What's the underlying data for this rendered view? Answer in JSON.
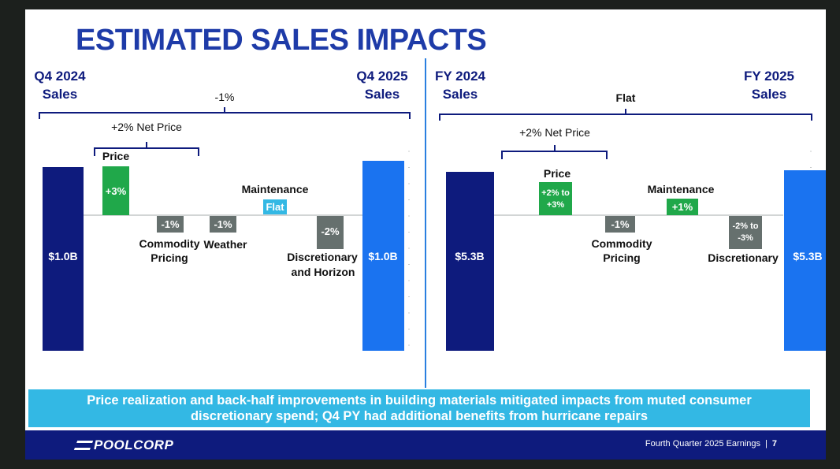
{
  "title": "ESTIMATED SALES IMPACTS",
  "banner": {
    "line1": "Price realization and back-half improvements in building materials mitigated impacts from muted consumer",
    "line2": "discretionary spend; Q4 PY had additional benefits from hurricane repairs"
  },
  "footer": {
    "logo": "POOLCORP",
    "text": "Fourth Quarter 2025 Earnings",
    "separator": "|",
    "page": "7"
  },
  "colors": {
    "dark_blue": "#0e1b7d",
    "bright_blue": "#1a73f0",
    "green": "#20a84a",
    "gray": "#66706e",
    "cyan": "#33b8e4"
  },
  "chart_data": [
    {
      "type": "bar",
      "subtype": "waterfall",
      "start_label": [
        "Q4 2024",
        "Sales"
      ],
      "end_label": [
        "Q4 2025",
        "Sales"
      ],
      "overall_change": "-1%",
      "net_price_label": "+2% Net Price",
      "start_value": "$1.0B",
      "end_value": "$1.0B",
      "steps": [
        {
          "name": "Price",
          "value": 3,
          "label": "+3%",
          "color": "#20a84a"
        },
        {
          "name": "Commodity Pricing",
          "value": -1,
          "label": "-1%",
          "color": "#66706e"
        },
        {
          "name": "Weather",
          "value": -1,
          "label": "-1%",
          "color": "#66706e"
        },
        {
          "name": "Maintenance",
          "value": 0,
          "label": "Flat",
          "color": "#33b8e4"
        },
        {
          "name": "Discretionary and Horizon",
          "value": -2,
          "label": "-2%",
          "color": "#66706e"
        }
      ]
    },
    {
      "type": "bar",
      "subtype": "waterfall",
      "start_label": [
        "FY 2024",
        "Sales"
      ],
      "end_label": [
        "FY 2025",
        "Sales"
      ],
      "overall_change": "Flat",
      "net_price_label": "+2% Net Price",
      "start_value": "$5.3B",
      "end_value": "$5.3B",
      "steps": [
        {
          "name": "Price",
          "value": 2.5,
          "label": "+2% to +3%",
          "color": "#20a84a"
        },
        {
          "name": "Commodity Pricing",
          "value": -1,
          "label": "-1%",
          "color": "#66706e"
        },
        {
          "name": "Maintenance",
          "value": 1,
          "label": "+1%",
          "color": "#20a84a"
        },
        {
          "name": "Discretionary",
          "value": -2.5,
          "label": "-2% to -3%",
          "color": "#66706e"
        }
      ]
    }
  ]
}
